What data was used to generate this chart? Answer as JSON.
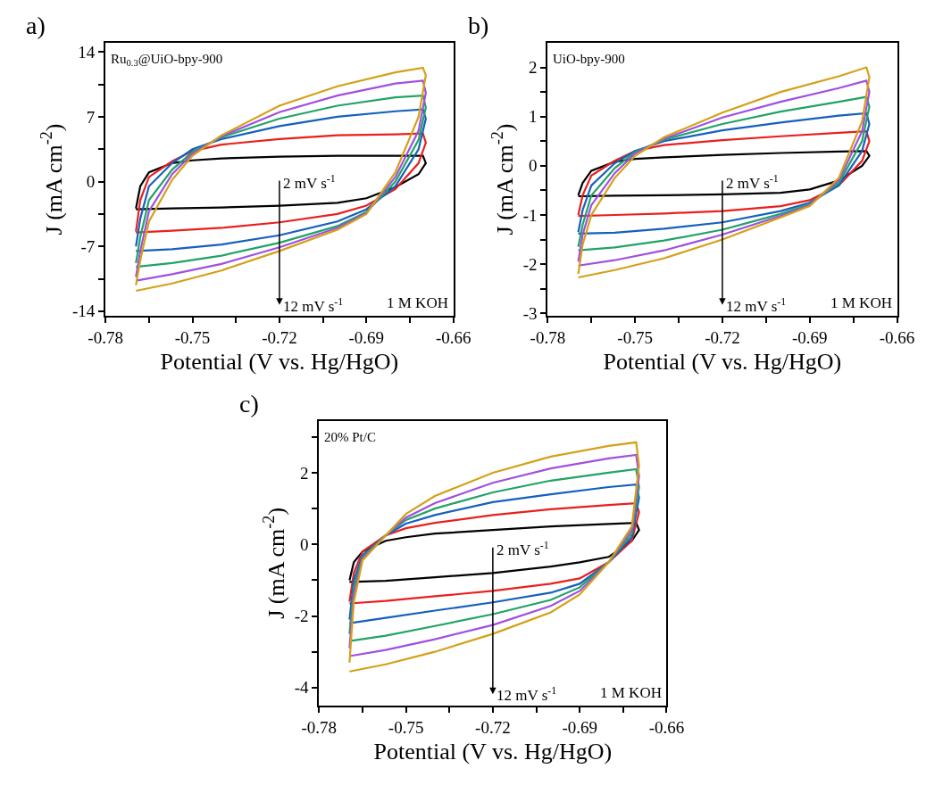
{
  "chart_data": [
    {
      "type": "line",
      "title": "a)",
      "xlabel": "Potential (V vs. Hg/HgO)",
      "ylabel": "J (mA cm$^{-2}$)",
      "annotations": [
        "Ru$_{0.3}$@UiO-bpy-900",
        "2 mV s$^{-1}$",
        "12 mV s$^{-1}$",
        "1 M KOH"
      ],
      "x": [
        -0.7695,
        -0.768,
        -0.765,
        -0.757,
        -0.75,
        -0.74,
        -0.72,
        -0.7,
        -0.68,
        -0.6705,
        -0.6695,
        -0.672,
        -0.68,
        -0.69,
        -0.7,
        -0.72,
        -0.74,
        -0.757,
        -0.7695
      ],
      "series": [
        {
          "color": "#000000",
          "values": [
            -2.9,
            -0.5,
            1.0,
            2.0,
            2.3,
            2.5,
            2.7,
            2.8,
            2.8,
            2.8,
            2.0,
            0.8,
            -0.6,
            -1.8,
            -2.3,
            -2.6,
            -2.8,
            -2.9,
            -3.0
          ]
        },
        {
          "color": "#e8201f",
          "values": [
            -5.4,
            -2,
            0.5,
            2.2,
            3.3,
            4.0,
            4.6,
            5.0,
            5.1,
            5.2,
            4.2,
            2.0,
            -0.8,
            -2.6,
            -3.5,
            -4.4,
            -5.0,
            -5.3,
            -5.5
          ]
        },
        {
          "color": "#1560bd",
          "values": [
            -7.0,
            -4,
            -0.5,
            2.0,
            3.5,
            4.6,
            6.0,
            7.0,
            7.6,
            7.8,
            6.8,
            3.5,
            -0.5,
            -3.0,
            -4.3,
            -5.8,
            -6.8,
            -7.3,
            -7.5
          ]
        },
        {
          "color": "#21a366",
          "values": [
            -8.8,
            -6,
            -2,
            1.3,
            3.2,
            4.8,
            6.8,
            8.2,
            9.1,
            9.3,
            8.0,
            4.5,
            0,
            -3.3,
            -4.8,
            -6.6,
            -8.0,
            -8.8,
            -9.2
          ]
        },
        {
          "color": "#a050e0",
          "values": [
            -10.3,
            -7.5,
            -3.2,
            0.8,
            3.0,
            4.9,
            7.5,
            9.3,
            10.6,
            10.9,
            9.6,
            5.5,
            0.5,
            -3.4,
            -5.0,
            -7.1,
            -8.9,
            -10.0,
            -10.7
          ]
        },
        {
          "color": "#d4a017",
          "values": [
            -11.2,
            -8.5,
            -4.3,
            0.2,
            2.8,
            5.0,
            8.2,
            10.3,
            11.8,
            12.3,
            11.5,
            7,
            1,
            -3.5,
            -5.2,
            -7.5,
            -9.6,
            -11.0,
            -11.8
          ]
        }
      ],
      "xlim": [
        -0.78,
        -0.66
      ],
      "xticks": [
        -0.78,
        {
          "value": -0.765,
          "label": null
        },
        -0.75,
        {
          "value": -0.735,
          "label": null
        },
        -0.72,
        {
          "value": -0.705,
          "label": null
        },
        -0.69,
        {
          "value": -0.675,
          "label": null
        },
        -0.66
      ],
      "ylim": [
        -14.5,
        15
      ],
      "yticks": [
        -14,
        {
          "value": -10.5,
          "label": null
        },
        -7,
        {
          "value": -3.5,
          "label": null
        },
        0,
        {
          "value": 3.5,
          "label": null
        },
        7,
        {
          "value": 10.5,
          "label": null
        },
        14
      ]
    },
    {
      "type": "line",
      "title": "b)",
      "xlabel": "Potential (V vs. Hg/HgO)",
      "ylabel": "J (mA cm$^{-2}$)",
      "annotations": [
        "UiO-bpy-900",
        "2 mV s$^{-1}$",
        "12 mV s$^{-1}$",
        "1 M KOH"
      ],
      "x": [
        -0.7695,
        -0.768,
        -0.765,
        -0.757,
        -0.75,
        -0.74,
        -0.72,
        -0.7,
        -0.68,
        -0.6705,
        -0.6695,
        -0.672,
        -0.68,
        -0.69,
        -0.7,
        -0.72,
        -0.74,
        -0.757,
        -0.7695
      ],
      "series": [
        {
          "color": "#000000",
          "values": [
            -0.6,
            -0.35,
            -0.1,
            0.08,
            0.14,
            0.17,
            0.22,
            0.26,
            0.29,
            0.3,
            0.2,
            0.0,
            -0.3,
            -0.48,
            -0.55,
            -0.58,
            -0.6,
            -0.61,
            -0.62
          ]
        },
        {
          "color": "#e8201f",
          "values": [
            -1.0,
            -0.6,
            -0.2,
            0.1,
            0.3,
            0.42,
            0.52,
            0.6,
            0.67,
            0.7,
            0.5,
            0.1,
            -0.4,
            -0.7,
            -0.82,
            -0.92,
            -0.97,
            -1.0,
            -1.02
          ]
        },
        {
          "color": "#1560bd",
          "values": [
            -1.35,
            -0.9,
            -0.4,
            0.05,
            0.3,
            0.5,
            0.72,
            0.88,
            1.02,
            1.07,
            0.85,
            0.3,
            -0.4,
            -0.75,
            -0.92,
            -1.15,
            -1.28,
            -1.36,
            -1.38
          ]
        },
        {
          "color": "#21a366",
          "values": [
            -1.65,
            -1.2,
            -0.6,
            -0.05,
            0.28,
            0.53,
            0.85,
            1.1,
            1.3,
            1.4,
            1.2,
            0.5,
            -0.35,
            -0.78,
            -0.98,
            -1.3,
            -1.52,
            -1.66,
            -1.72
          ]
        },
        {
          "color": "#a050e0",
          "values": [
            -1.95,
            -1.4,
            -0.8,
            -0.15,
            0.25,
            0.55,
            0.98,
            1.3,
            1.58,
            1.73,
            1.5,
            0.7,
            -0.3,
            -0.8,
            -1.02,
            -1.4,
            -1.72,
            -1.92,
            -2.03
          ]
        },
        {
          "color": "#d4a017",
          "values": [
            -2.2,
            -1.6,
            -1.0,
            -0.25,
            0.2,
            0.58,
            1.08,
            1.5,
            1.82,
            2.0,
            1.8,
            0.9,
            -0.25,
            -0.82,
            -1.05,
            -1.5,
            -1.88,
            -2.12,
            -2.27
          ]
        }
      ],
      "xlim": [
        -0.78,
        -0.66
      ],
      "xticks": [
        -0.78,
        {
          "value": -0.765,
          "label": null
        },
        -0.75,
        {
          "value": -0.735,
          "label": null
        },
        -0.72,
        {
          "value": -0.705,
          "label": null
        },
        -0.69,
        {
          "value": -0.675,
          "label": null
        },
        -0.66
      ],
      "ylim": [
        -3.05,
        2.5
      ],
      "yticks": [
        -3,
        {
          "value": -2.5,
          "label": null
        },
        -2,
        {
          "value": -1.5,
          "label": null
        },
        -1,
        {
          "value": -0.5,
          "label": null
        },
        0,
        {
          "value": 0.5,
          "label": null
        },
        1,
        {
          "value": 1.5,
          "label": null
        },
        2
      ]
    },
    {
      "type": "line",
      "title": "c)",
      "xlabel": "Potential (V vs. Hg/HgO)",
      "ylabel": "J (mA cm$^{-2}$)",
      "annotations": [
        "20% Pt/C",
        "2 mV s$^{-1}$",
        "12 mV s$^{-1}$",
        "1 M KOH"
      ],
      "x": [
        -0.7695,
        -0.768,
        -0.765,
        -0.757,
        -0.75,
        -0.74,
        -0.72,
        -0.7,
        -0.68,
        -0.6705,
        -0.6695,
        -0.672,
        -0.68,
        -0.69,
        -0.7,
        -0.72,
        -0.74,
        -0.757,
        -0.7695
      ],
      "series": [
        {
          "color": "#000000",
          "values": [
            -1.0,
            -0.5,
            -0.2,
            0.1,
            0.2,
            0.3,
            0.4,
            0.5,
            0.57,
            0.6,
            0.4,
            0.1,
            -0.35,
            -0.5,
            -0.62,
            -0.8,
            -0.92,
            -1.02,
            -1.05
          ]
        },
        {
          "color": "#e8201f",
          "values": [
            -1.6,
            -0.8,
            -0.2,
            0.25,
            0.45,
            0.6,
            0.82,
            0.98,
            1.1,
            1.15,
            0.9,
            0.1,
            -0.5,
            -0.95,
            -1.1,
            -1.3,
            -1.45,
            -1.58,
            -1.65
          ]
        },
        {
          "color": "#1560bd",
          "values": [
            -2.1,
            -1.0,
            -0.3,
            0.25,
            0.58,
            0.82,
            1.18,
            1.4,
            1.6,
            1.67,
            1.3,
            0.2,
            -0.5,
            -1.1,
            -1.35,
            -1.62,
            -1.85,
            -2.05,
            -2.2
          ]
        },
        {
          "color": "#21a366",
          "values": [
            -2.5,
            -1.2,
            -0.35,
            0.25,
            0.68,
            1.0,
            1.45,
            1.78,
            2.0,
            2.1,
            1.6,
            0.3,
            -0.5,
            -1.2,
            -1.55,
            -1.95,
            -2.28,
            -2.55,
            -2.7
          ]
        },
        {
          "color": "#a050e0",
          "values": [
            -2.9,
            -1.4,
            -0.4,
            0.25,
            0.75,
            1.15,
            1.72,
            2.12,
            2.4,
            2.5,
            1.9,
            0.4,
            -0.5,
            -1.3,
            -1.72,
            -2.25,
            -2.65,
            -2.95,
            -3.12
          ]
        },
        {
          "color": "#d4a017",
          "values": [
            -3.3,
            -1.6,
            -0.45,
            0.25,
            0.85,
            1.35,
            2.0,
            2.45,
            2.75,
            2.85,
            2.2,
            0.5,
            -0.5,
            -1.4,
            -1.9,
            -2.5,
            -3.0,
            -3.35,
            -3.55
          ]
        }
      ],
      "xlim": [
        -0.78,
        -0.66
      ],
      "xticks": [
        -0.78,
        {
          "value": -0.765,
          "label": null
        },
        -0.75,
        {
          "value": -0.735,
          "label": null
        },
        -0.72,
        {
          "value": -0.705,
          "label": null
        },
        -0.69,
        {
          "value": -0.675,
          "label": null
        },
        -0.66
      ],
      "ylim": [
        -4.5,
        3.45
      ],
      "yticks": [
        -4,
        {
          "value": -3,
          "label": null
        },
        -2,
        {
          "value": -1,
          "label": null
        },
        0,
        {
          "value": 1,
          "label": null
        },
        2,
        {
          "value": 3,
          "label": null
        }
      ]
    }
  ]
}
